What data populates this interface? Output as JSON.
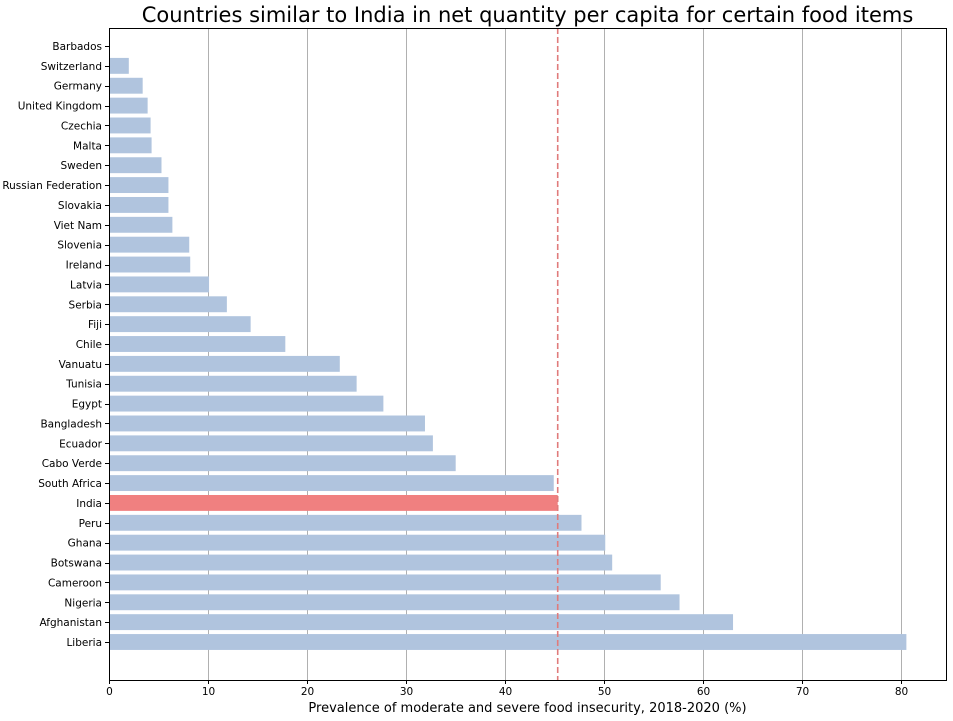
{
  "chart_data": {
    "type": "bar",
    "orientation": "horizontal",
    "title": "Countries similar to India in net quantity per capita for certain food items",
    "xlabel": "Prevalence of moderate and severe food insecurity, 2018-2020 (%)",
    "ylabel": "",
    "xlim": [
      0,
      84.5
    ],
    "xticks": [
      0,
      10,
      20,
      30,
      40,
      50,
      60,
      70,
      80
    ],
    "grid": "vertical",
    "reference_line": {
      "x": 45.3,
      "style": "dashed",
      "color": "#e07b7b"
    },
    "highlight_category": "India",
    "colors": {
      "default": "#b0c4de",
      "highlight": "#f08080",
      "grid": "#b0b0b0"
    },
    "categories": [
      "Barbados",
      "Switzerland",
      "Germany",
      "United Kingdom",
      "Czechia",
      "Malta",
      "Sweden",
      "Russian Federation",
      "Slovakia",
      "Viet Nam",
      "Slovenia",
      "Ireland",
      "Latvia",
      "Serbia",
      "Fiji",
      "Chile",
      "Vanuatu",
      "Tunisia",
      "Egypt",
      "Bangladesh",
      "Ecuador",
      "Cabo Verde",
      "South Africa",
      "India",
      "Peru",
      "Ghana",
      "Botswana",
      "Cameroon",
      "Nigeria",
      "Afghanistan",
      "Liberia"
    ],
    "values": [
      0,
      2.0,
      3.4,
      3.9,
      4.2,
      4.3,
      5.3,
      6.0,
      6.0,
      6.4,
      8.1,
      8.2,
      10.1,
      11.9,
      14.3,
      17.8,
      23.3,
      25.0,
      27.7,
      31.9,
      32.7,
      35.0,
      44.9,
      45.3,
      47.7,
      50.1,
      50.8,
      55.7,
      57.6,
      63.0,
      80.5
    ]
  }
}
